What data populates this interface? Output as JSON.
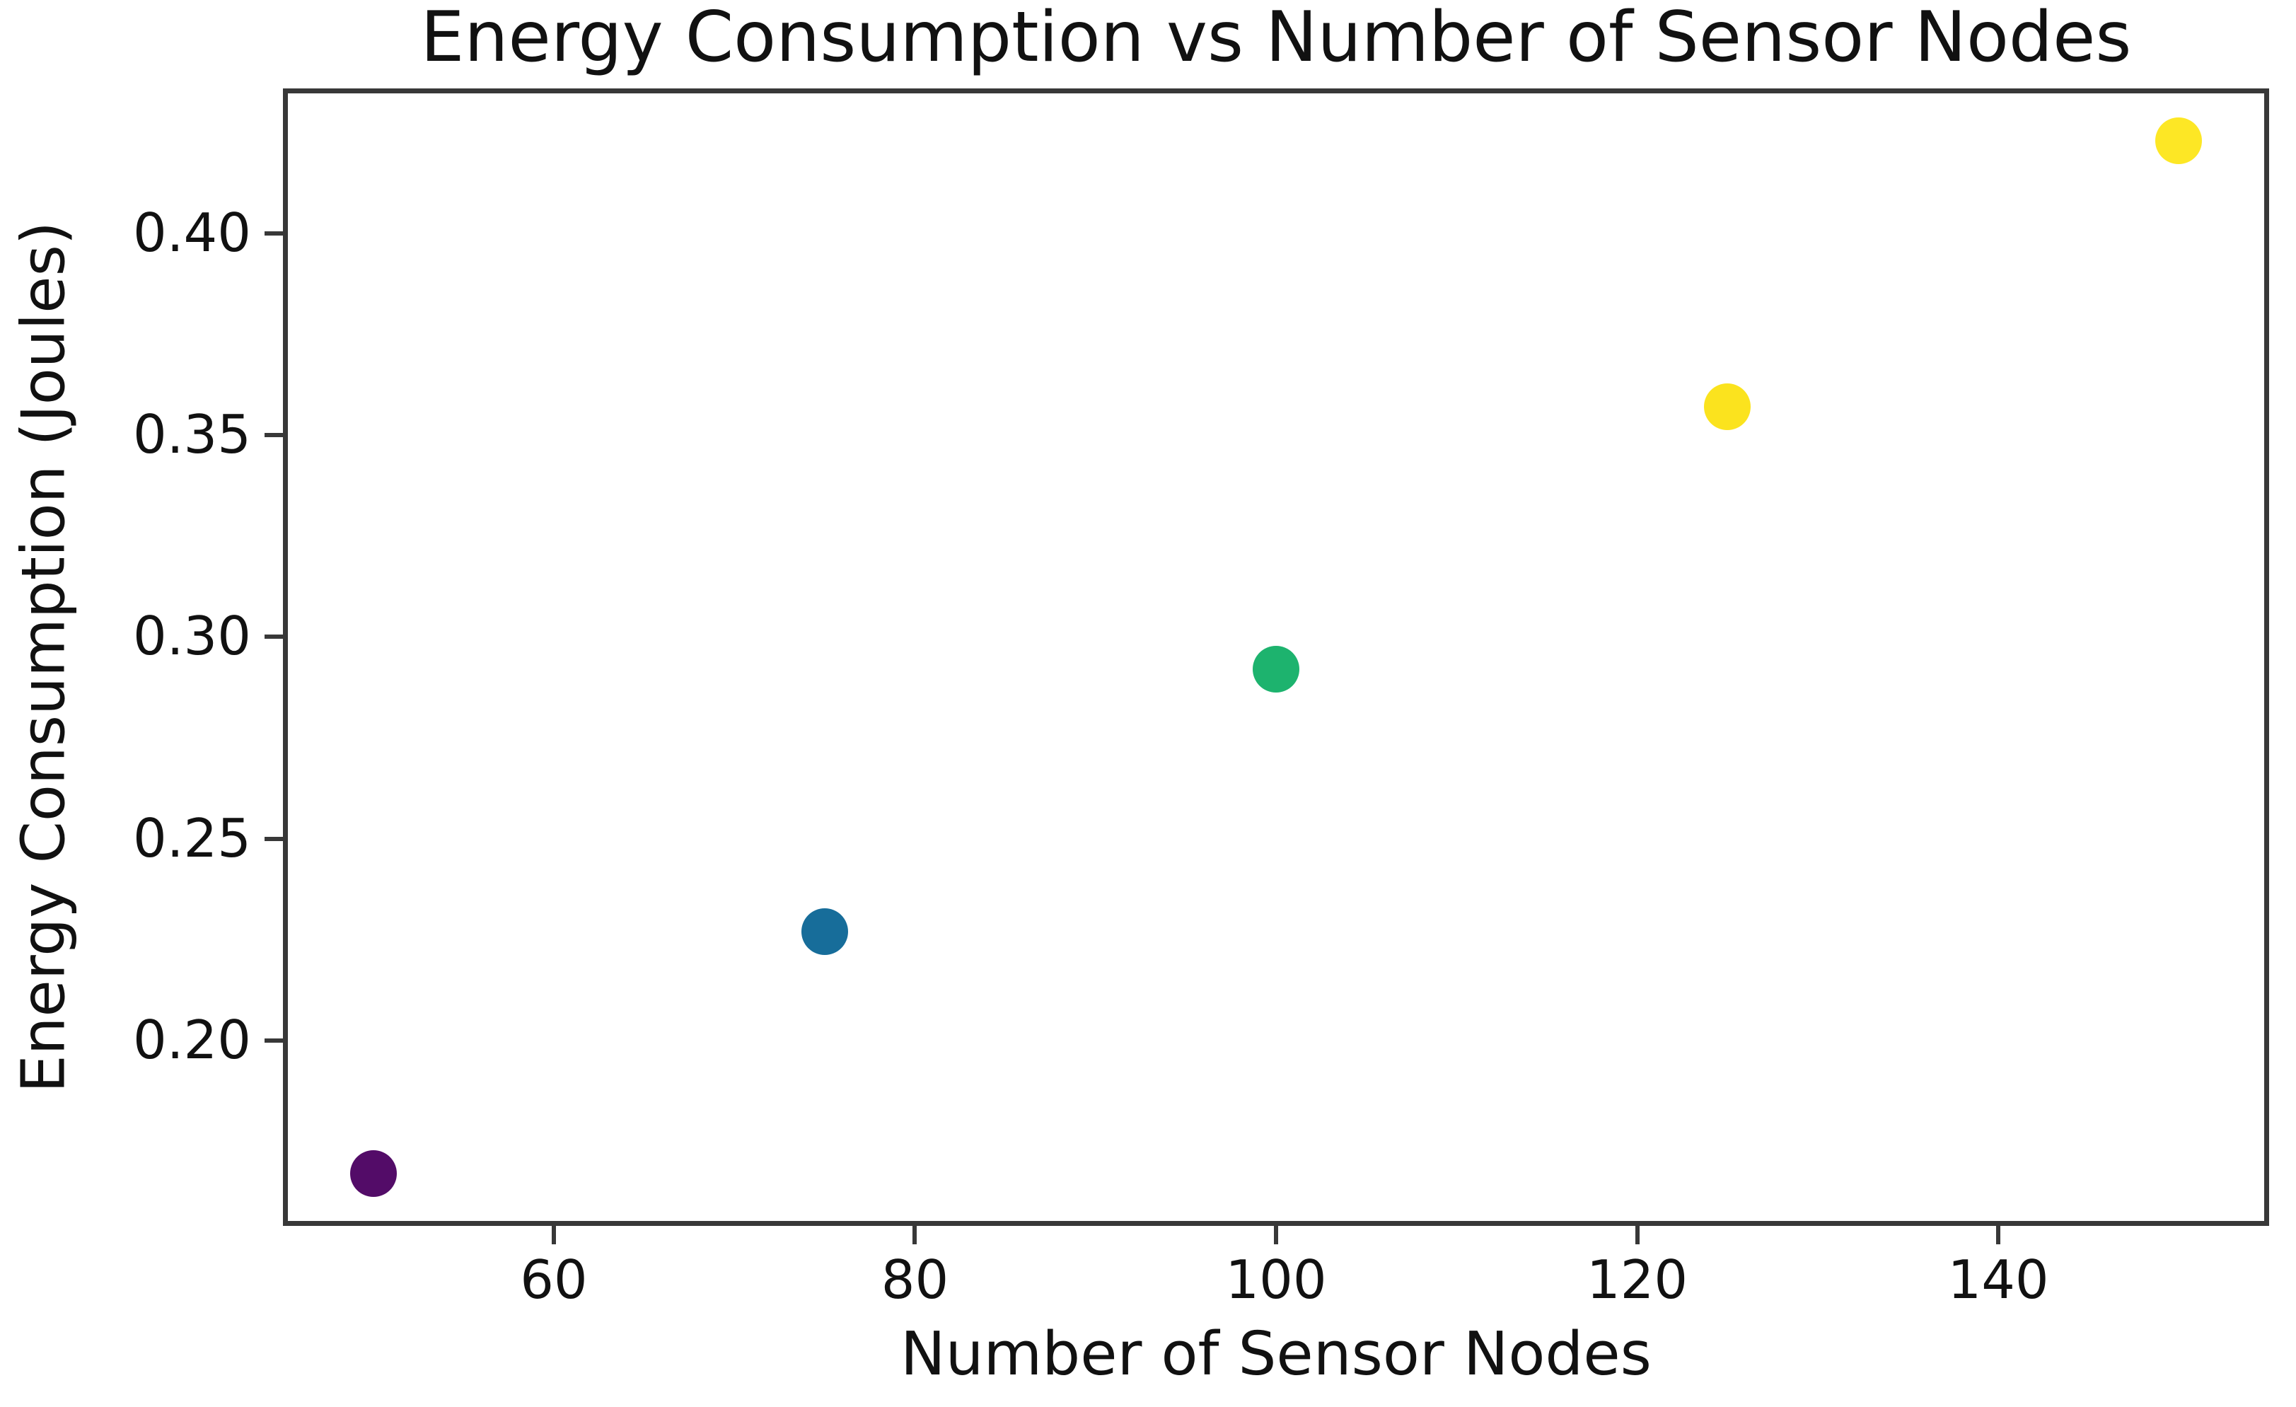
{
  "chart_data": {
    "type": "scatter",
    "title": "Energy Consumption vs Number of Sensor Nodes",
    "xlabel": "Number of Sensor Nodes",
    "ylabel": "Energy Consumption (Joules)",
    "x": [
      50,
      75,
      100,
      125,
      150
    ],
    "y": [
      0.167,
      0.227,
      0.292,
      0.357,
      0.423
    ],
    "point_colors": [
      "#530c68",
      "#176d9a",
      "#1db36e",
      "#fbe31e",
      "#fde725"
    ],
    "xlim": [
      45,
      155
    ],
    "ylim": [
      0.154,
      0.436
    ],
    "xticks": [
      {
        "value": 60,
        "label": "60"
      },
      {
        "value": 80,
        "label": "80"
      },
      {
        "value": 100,
        "label": "100"
      },
      {
        "value": 120,
        "label": "120"
      },
      {
        "value": 140,
        "label": "140"
      }
    ],
    "yticks": [
      {
        "value": 0.2,
        "label": "0.20"
      },
      {
        "value": 0.25,
        "label": "0.25"
      },
      {
        "value": 0.3,
        "label": "0.30"
      },
      {
        "value": 0.35,
        "label": "0.35"
      },
      {
        "value": 0.4,
        "label": "0.40"
      }
    ],
    "grid": false,
    "legend": false
  },
  "colors": {
    "background": "#ffffff",
    "spine": "#383838",
    "text": "#111111"
  }
}
